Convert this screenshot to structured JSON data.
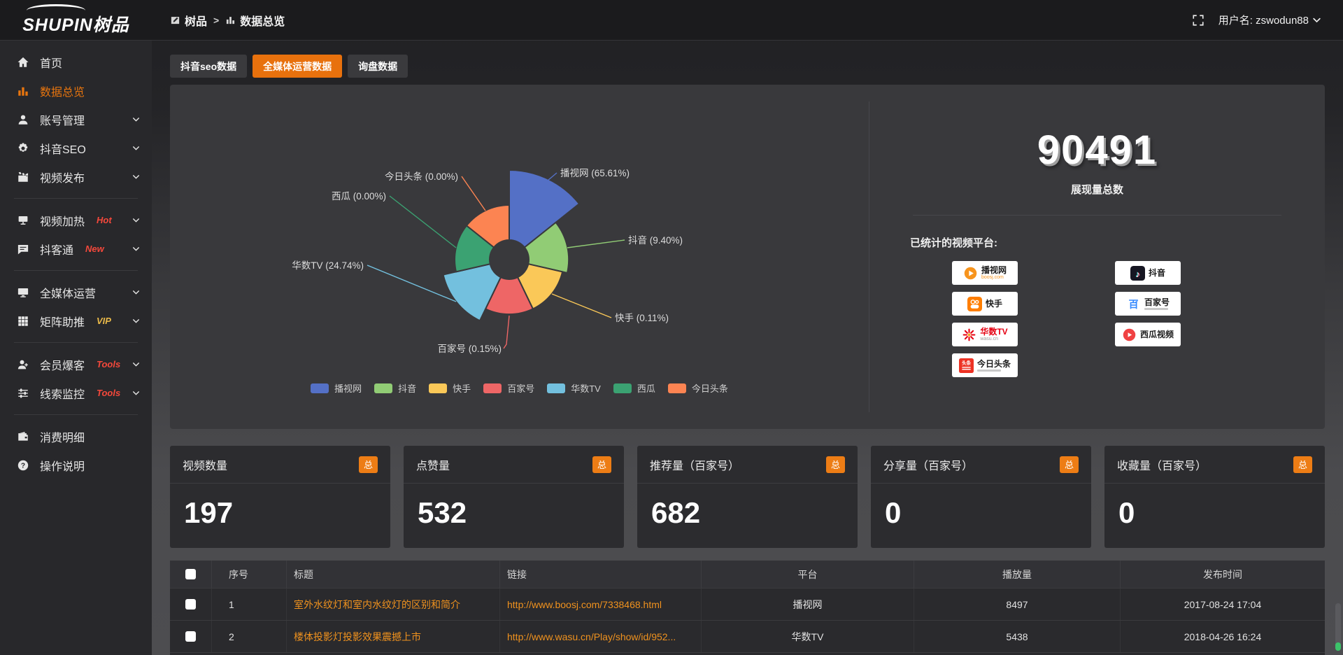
{
  "topbar": {
    "logo_en": "SHUPIN",
    "logo_cn": "树品",
    "breadcrumb": {
      "root": "树品",
      "separator": ">",
      "current": "数据总览"
    },
    "username": "用户名: zswodun88"
  },
  "sidebar": {
    "items": [
      {
        "icon": "home",
        "label": "首页"
      },
      {
        "icon": "chart-bar",
        "label": "数据总览",
        "active": true
      },
      {
        "icon": "user",
        "label": "账号管理",
        "chevron": true
      },
      {
        "icon": "gear",
        "label": "抖音SEO",
        "chevron": true
      },
      {
        "icon": "clapper",
        "label": "视频发布",
        "chevron": true
      },
      {
        "divider": true
      },
      {
        "icon": "screen-flag",
        "label": "视频加热",
        "badge": "Hot",
        "badge_color": "#f5483b",
        "chevron": true
      },
      {
        "icon": "comment",
        "label": "抖客通",
        "badge": "New",
        "badge_color": "#f5483b",
        "chevron": true
      },
      {
        "divider": true
      },
      {
        "icon": "monitor",
        "label": "全媒体运营",
        "chevron": true
      },
      {
        "icon": "grid",
        "label": "矩阵助推",
        "badge": "VIP",
        "badge_color": "#e9b949",
        "chevron": true
      },
      {
        "divider": true
      },
      {
        "icon": "user-group",
        "label": "会员爆客",
        "badge": "Tools",
        "badge_color": "#f5483b",
        "chevron": true
      },
      {
        "icon": "sliders",
        "label": "线索监控",
        "badge": "Tools",
        "badge_color": "#f5483b",
        "chevron": true
      },
      {
        "divider": true
      },
      {
        "icon": "wallet",
        "label": "消费明细"
      },
      {
        "icon": "question",
        "label": "操作说明"
      }
    ]
  },
  "tabs": [
    {
      "label": "抖音seo数据"
    },
    {
      "label": "全媒体运营数据",
      "active": true
    },
    {
      "label": "询盘数据"
    }
  ],
  "chart_data": {
    "type": "pie",
    "variant": "nightingale-rose",
    "unit": "percent",
    "legend_position": "bottom",
    "donut_hole": true,
    "categories": [
      "播视网",
      "抖音",
      "快手",
      "百家号",
      "华数TV",
      "西瓜",
      "今日头条"
    ],
    "values": [
      65.61,
      9.4,
      0.11,
      0.15,
      24.74,
      0.0,
      0.0
    ],
    "colors": [
      "#5470c6",
      "#91cc75",
      "#fac858",
      "#ee6666",
      "#73c0de",
      "#3ba272",
      "#fc8452"
    ],
    "labels": [
      "播视网 (65.61%)",
      "抖音 (9.40%)",
      "快手 (0.11%)",
      "百家号 (0.15%)",
      "华数TV (24.74%)",
      "西瓜 (0.00%)",
      "今日头条 (0.00%)"
    ]
  },
  "summary": {
    "total_value": "90491",
    "total_label": "展现量总数",
    "platforms_label": "已统计的视频平台:",
    "platforms": [
      {
        "icon": "boosj",
        "name": "播视网",
        "sub": "boosj.com"
      },
      {
        "icon": "douyin",
        "name": "抖音"
      },
      {
        "icon": "kuaishou",
        "name": "快手"
      },
      {
        "icon": "baijiahao",
        "name": "百家号",
        "substub": true
      },
      {
        "icon": "wasu",
        "name": "华数TV",
        "sub": "wasu.cn",
        "sub_gray": true
      },
      {
        "icon": "xigua",
        "name": "西瓜视频"
      },
      {
        "icon": "toutiao",
        "name": "今日头条",
        "substub": true
      }
    ]
  },
  "stat_cards": [
    {
      "title": "视频数量",
      "badge": "总",
      "value": "197"
    },
    {
      "title": "点赞量",
      "badge": "总",
      "value": "532"
    },
    {
      "title": "推荐量（百家号）",
      "badge": "总",
      "value": "682"
    },
    {
      "title": "分享量（百家号）",
      "badge": "总",
      "value": "0"
    },
    {
      "title": "收藏量（百家号）",
      "badge": "总",
      "value": "0"
    }
  ],
  "table": {
    "columns": [
      "序号",
      "标题",
      "链接",
      "平台",
      "播放量",
      "发布时间"
    ],
    "rows": [
      {
        "index": "1",
        "title": "室外水纹灯和室内水纹灯的区别和简介",
        "link": "http://www.boosj.com/7338468.html",
        "platform": "播视网",
        "plays": "8497",
        "published": "2017-08-24 17:04"
      },
      {
        "index": "2",
        "title": "楼体投影灯投影效果震撼上市",
        "link": "http://www.wasu.cn/Play/show/id/952...",
        "platform": "华数TV",
        "plays": "5438",
        "published": "2018-04-26 16:24"
      }
    ]
  },
  "colors": {
    "accent": "#e8710d",
    "link": "#f0921e",
    "badge": "#ed7d15"
  }
}
